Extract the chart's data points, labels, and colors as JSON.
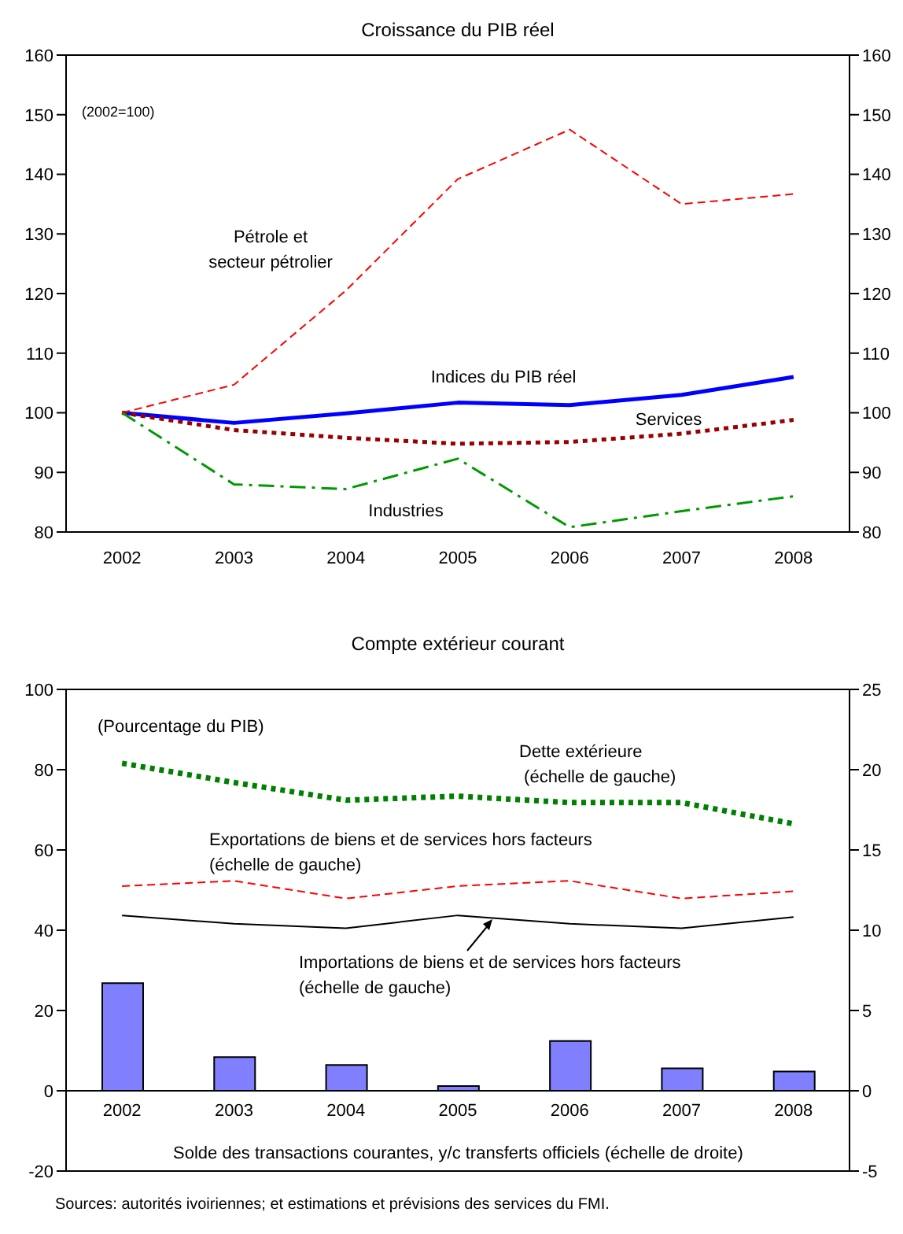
{
  "chart_data": [
    {
      "type": "line",
      "title": "Croissance du PIB réel",
      "categories": [
        "2002",
        "2003",
        "2004",
        "2005",
        "2006",
        "2007",
        "2008"
      ],
      "series": [
        {
          "name": "Pétrole et\nsecteur pétrolier",
          "color": "#ff0000",
          "line_style": "dashed",
          "values": [
            100,
            104.7,
            120.5,
            139.2,
            147.5,
            135,
            136.7
          ]
        },
        {
          "name": "Indices du PIB réel",
          "color": "#0000ff",
          "line_style": "solid",
          "values": [
            100,
            98.3,
            99.9,
            101.7,
            101.3,
            103,
            106
          ]
        },
        {
          "name": "Services",
          "color": "#990000",
          "line_style": "dotted",
          "values": [
            100,
            97.1,
            95.8,
            94.8,
            95.1,
            96.5,
            98.8
          ]
        },
        {
          "name": "Industries",
          "color": "#009900",
          "line_style": "dashdot",
          "values": [
            100,
            88,
            87.2,
            92.3,
            80.8,
            83.5,
            86
          ]
        }
      ],
      "ylim": [
        80,
        160
      ],
      "yticks": [
        80,
        90,
        100,
        110,
        120,
        130,
        140,
        150,
        160
      ],
      "y2lim": [
        80,
        160
      ],
      "y2ticks": [
        80,
        90,
        100,
        110,
        120,
        130,
        140,
        150,
        160
      ],
      "annotations": [
        "(2002=100)"
      ],
      "marker": "none"
    },
    {
      "type": "line",
      "title": "Compte extérieur courant",
      "categories": [
        "2002",
        "2003",
        "2004",
        "2005",
        "2006",
        "2007",
        "2008"
      ],
      "series": [
        {
          "type": "bar",
          "axis": "y2",
          "color": "#8080ff",
          "values": [
            6.7,
            2.1,
            1.6,
            0.3,
            3.1,
            1.4,
            1.2
          ]
        },
        {
          "name": "Dette extérieure\n (échelle de gauche)",
          "color": "#008000",
          "line_style": "dotted",
          "values": [
            81.6,
            76.8,
            72.4,
            73.4,
            71.8,
            71.8,
            66.5
          ]
        },
        {
          "name": "Exportations de biens et de services hors facteurs\n(échelle de gauche)",
          "color": "#ff0000",
          "line_style": "dashed",
          "values": [
            51,
            52.3,
            47.9,
            51,
            52.3,
            47.9,
            49.7
          ]
        },
        {
          "name": "Importations de biens et de services hors facteurs\n(échelle de gauche)",
          "color": "#000000",
          "line_style": "solid",
          "values": [
            43.7,
            41.6,
            40.5,
            43.7,
            41.6,
            40.5,
            43.3
          ]
        }
      ],
      "ylim": [
        -20,
        100
      ],
      "yticks": [
        -20,
        0,
        20,
        40,
        60,
        80,
        100
      ],
      "y2lim": [
        -5,
        25
      ],
      "y2ticks": [
        -5,
        0,
        5,
        10,
        15,
        20,
        25
      ],
      "xlabel": "Solde des transactions courantes, y/c transferts officiels (échelle de droite)",
      "annotations": [
        "(Pourcentage du PIB)",
        "Sources: autorités ivoiriennes; et estimations et prévisions des services du FMI."
      ],
      "marker": "none"
    }
  ]
}
